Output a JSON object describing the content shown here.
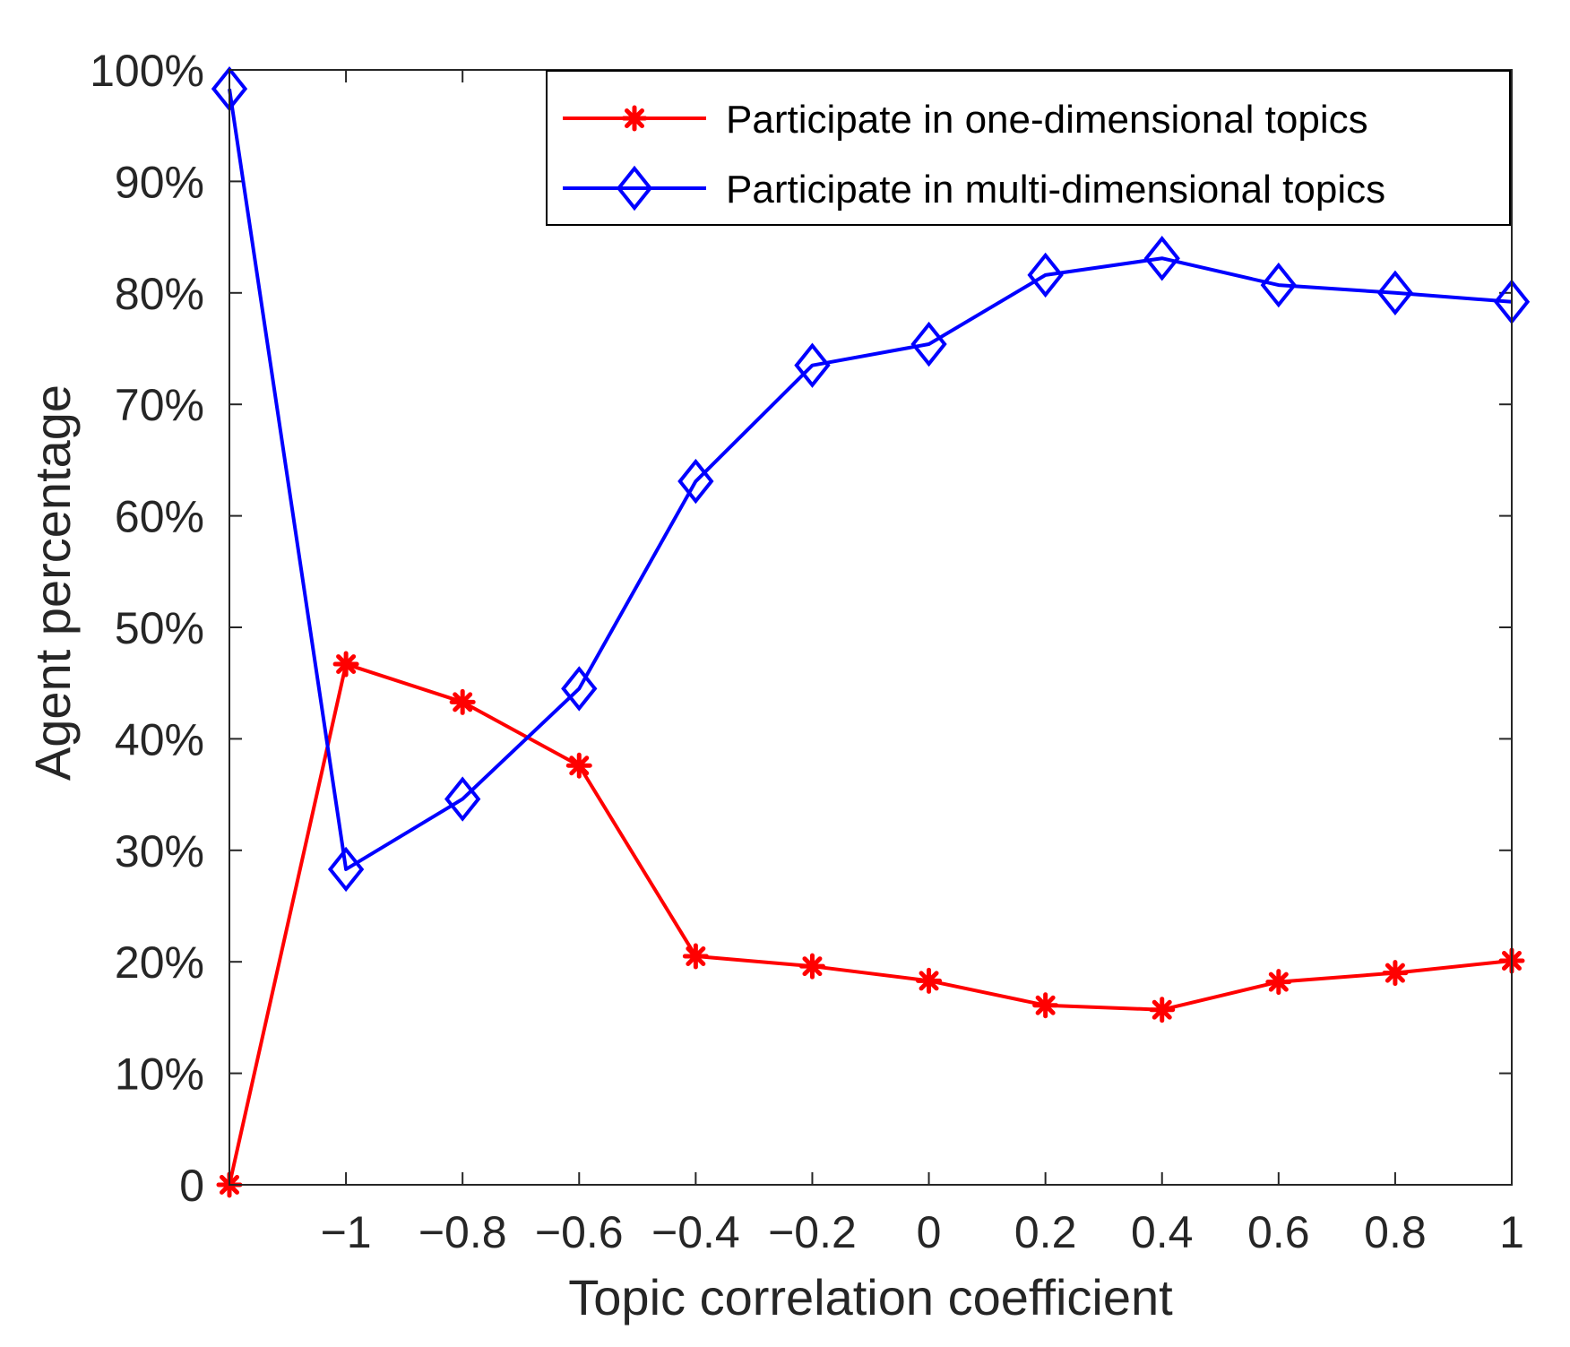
{
  "chart_data": {
    "type": "line",
    "title": "",
    "xlabel": "Topic correlation coefficient",
    "ylabel": "Agent percentage",
    "x": [
      -1.2,
      -1,
      -0.8,
      -0.6,
      -0.4,
      -0.2,
      0,
      0.2,
      0.4,
      0.6,
      0.8,
      1
    ],
    "xlim": [
      -1.2,
      1
    ],
    "ylim": [
      0,
      100
    ],
    "x_ticks": [
      {
        "value": -1,
        "label": "−1"
      },
      {
        "value": -0.8,
        "label": "−0.8"
      },
      {
        "value": -0.6,
        "label": "−0.6"
      },
      {
        "value": -0.4,
        "label": "−0.4"
      },
      {
        "value": -0.2,
        "label": "−0.2"
      },
      {
        "value": 0,
        "label": "0"
      },
      {
        "value": 0.2,
        "label": "0.2"
      },
      {
        "value": 0.4,
        "label": "0.4"
      },
      {
        "value": 0.6,
        "label": "0.6"
      },
      {
        "value": 0.8,
        "label": "0.8"
      },
      {
        "value": 1,
        "label": "1"
      }
    ],
    "y_ticks": [
      {
        "value": 0,
        "label": "0"
      },
      {
        "value": 10,
        "label": "10%"
      },
      {
        "value": 20,
        "label": "20%"
      },
      {
        "value": 30,
        "label": "30%"
      },
      {
        "value": 40,
        "label": "40%"
      },
      {
        "value": 50,
        "label": "50%"
      },
      {
        "value": 60,
        "label": "60%"
      },
      {
        "value": 70,
        "label": "70%"
      },
      {
        "value": 80,
        "label": "80%"
      },
      {
        "value": 90,
        "label": "90%"
      },
      {
        "value": 100,
        "label": "100%"
      }
    ],
    "grid": false,
    "legend_position": "top-right",
    "series": [
      {
        "name": "Participate in one-dimensional topics",
        "color": "#ff0000",
        "marker": "asterisk",
        "values": [
          0,
          46.7,
          43.3,
          37.6,
          20.5,
          19.6,
          18.3,
          16.1,
          15.7,
          18.2,
          19.0,
          20.1
        ]
      },
      {
        "name": "Participate in multi-dimensional topics",
        "color": "#0000ff",
        "marker": "diamond",
        "values": [
          98.3,
          28.3,
          34.6,
          44.5,
          63.1,
          73.5,
          75.4,
          81.6,
          83.1,
          80.7,
          80.0,
          79.2
        ]
      }
    ]
  }
}
